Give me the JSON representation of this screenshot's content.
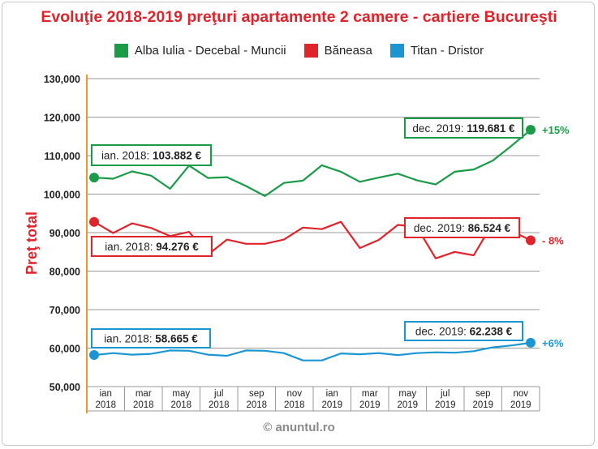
{
  "chart_data": {
    "type": "line",
    "title": "Evoluţie 2018-2019 preţuri apartamente 2 camere - cartiere Bucureşti",
    "ylabel": "Preţ total",
    "ylim": [
      50000,
      130000
    ],
    "y_ticks": [
      "50,000",
      "60,000",
      "70,000",
      "80,000",
      "90,000",
      "100,000",
      "110,000",
      "120,000",
      "130,000"
    ],
    "y_tick_values": [
      50000,
      60000,
      70000,
      80000,
      90000,
      100000,
      110000,
      120000,
      130000
    ],
    "x_tick_labels": [
      [
        "ian",
        "2018"
      ],
      [
        "mar",
        "2018"
      ],
      [
        "may",
        "2018"
      ],
      [
        "jul",
        "2018"
      ],
      [
        "sep",
        "2018"
      ],
      [
        "nov",
        "2018"
      ],
      [
        "ian",
        "2019"
      ],
      [
        "mar",
        "2019"
      ],
      [
        "may",
        "2019"
      ],
      [
        "jul",
        "2019"
      ],
      [
        "sep",
        "2019"
      ],
      [
        "nov",
        "2019"
      ]
    ],
    "months": [
      "ian 2018",
      "feb 2018",
      "mar 2018",
      "apr 2018",
      "may 2018",
      "jun 2018",
      "jul 2018",
      "aug 2018",
      "sep 2018",
      "oct 2018",
      "nov 2018",
      "dec 2018",
      "ian 2019",
      "feb 2019",
      "mar 2019",
      "apr 2019",
      "may 2019",
      "jun 2019",
      "jul 2019",
      "aug 2019",
      "sep 2019",
      "oct 2019",
      "nov 2019",
      "dec 2019"
    ],
    "grid": true,
    "legend_position": "top",
    "series": [
      {
        "name": "Alba Iulia - Decebal - Muncii",
        "color": "#1a9b48",
        "values": [
          104300,
          104000,
          105900,
          104800,
          101400,
          107400,
          104200,
          104400,
          102100,
          99500,
          102900,
          103500,
          107500,
          105800,
          103200,
          104300,
          105300,
          103600,
          102500,
          105800,
          106400,
          108700,
          112600,
          116700
        ],
        "start_label": {
          "prefix": "ian. 2018: ",
          "value": "103.882 €"
        },
        "end_label": {
          "prefix": "dec. 2019: ",
          "value": "119.681 €"
        },
        "change": "+15%"
      },
      {
        "name": "Băneasa",
        "color": "#e0242b",
        "values": [
          92800,
          89900,
          92400,
          91200,
          89100,
          90200,
          84300,
          88200,
          87100,
          87100,
          88200,
          91300,
          90900,
          92800,
          86000,
          88100,
          92000,
          91500,
          83300,
          85000,
          84100,
          92400,
          90400,
          88000
        ],
        "start_label": {
          "prefix": "ian. 2018: ",
          "value": "94.276 €"
        },
        "end_label": {
          "prefix": "dec. 2019: ",
          "value": "86.524 €"
        },
        "change": "- 8%"
      },
      {
        "name": "Titan - Dristor",
        "color": "#1b96d2",
        "values": [
          58200,
          58700,
          58300,
          58500,
          59400,
          59300,
          58300,
          58000,
          59400,
          59300,
          58700,
          56800,
          56800,
          58600,
          58400,
          58700,
          58200,
          58700,
          58900,
          58800,
          59200,
          60200,
          60700,
          61400
        ],
        "start_label": {
          "prefix": "ian. 2018: ",
          "value": "58.665 €"
        },
        "end_label": {
          "prefix": "dec. 2019: ",
          "value": "62.238 €"
        },
        "change": "+6%"
      }
    ]
  },
  "watermark": "© anuntul.ro"
}
